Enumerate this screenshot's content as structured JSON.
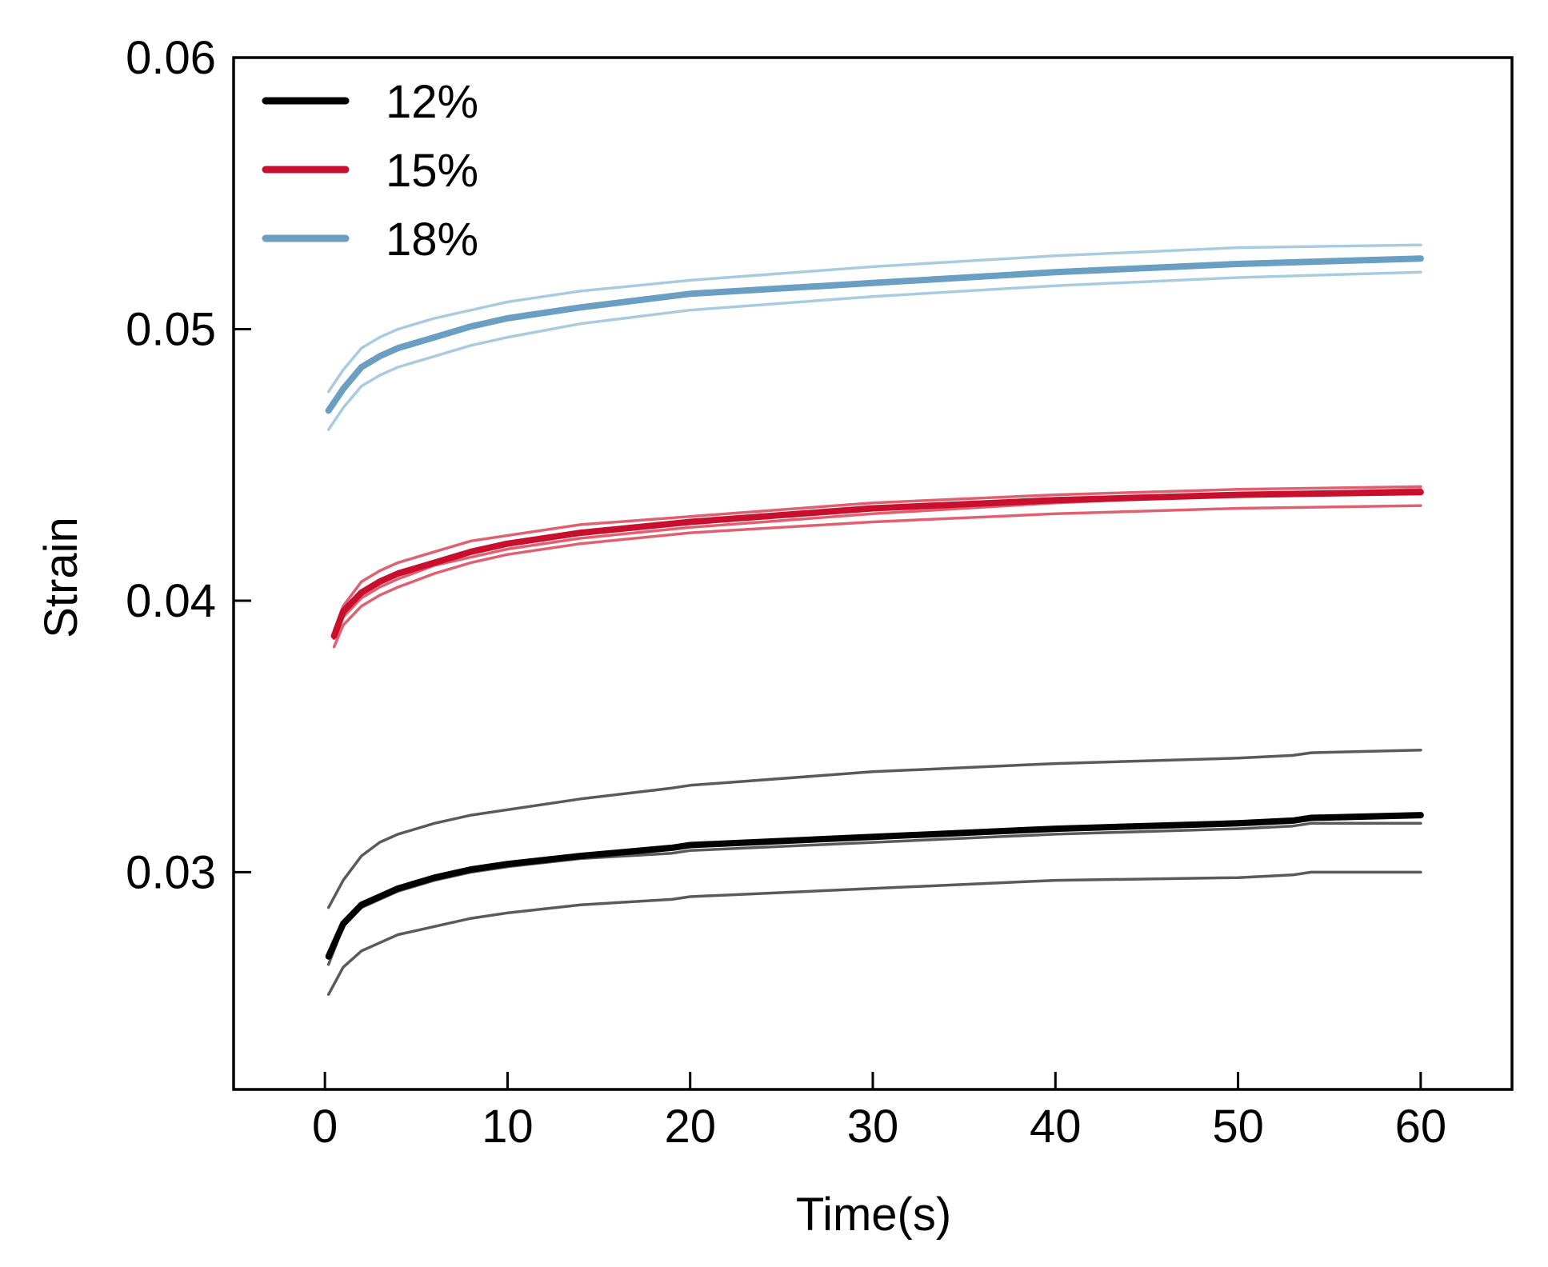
{
  "chart_data": {
    "type": "line",
    "title": "",
    "xlabel": "Time(s)",
    "ylabel": "Strain",
    "xlim": [
      -5,
      65
    ],
    "ylim": [
      0.022,
      0.06
    ],
    "xticks": [
      0,
      10,
      20,
      30,
      40,
      50,
      60
    ],
    "xtick_labels": [
      "0",
      "10",
      "20",
      "30",
      "40",
      "50",
      "60"
    ],
    "yticks": [
      0.03,
      0.04,
      0.05,
      0.06
    ],
    "ytick_labels": [
      "0.03",
      "0.04",
      "0.05",
      "0.06"
    ],
    "grid": false,
    "legend": {
      "position": "top-left",
      "entries": [
        "12%",
        "15%",
        "18%"
      ]
    },
    "series": [
      {
        "name": "12%",
        "color": "#000000",
        "band_color": "#5a5a5a",
        "x": [
          0.2,
          1,
          2,
          3,
          4,
          6,
          8,
          10,
          14,
          19,
          20,
          30,
          40,
          50,
          53,
          54,
          60
        ],
        "mean": [
          0.0269,
          0.0281,
          0.0288,
          0.0291,
          0.0294,
          0.0298,
          0.0301,
          0.0303,
          0.0306,
          0.0309,
          0.031,
          0.0313,
          0.0316,
          0.0318,
          0.0319,
          0.032,
          0.0321
        ],
        "upper": [
          0.0287,
          0.0297,
          0.0306,
          0.0311,
          0.0314,
          0.0318,
          0.0321,
          0.0323,
          0.0327,
          0.0331,
          0.0332,
          0.0337,
          0.034,
          0.0342,
          0.0343,
          0.0344,
          0.0345
        ],
        "lower": [
          0.0255,
          0.0265,
          0.0271,
          0.0274,
          0.0277,
          0.028,
          0.0283,
          0.0285,
          0.0288,
          0.029,
          0.0291,
          0.0294,
          0.0297,
          0.0298,
          0.0299,
          0.03,
          0.03
        ],
        "extra": [
          0.0266,
          0.028,
          0.0287,
          0.029,
          0.0293,
          0.0297,
          0.03,
          0.0302,
          0.0305,
          0.0307,
          0.0308,
          0.0311,
          0.0314,
          0.0316,
          0.0317,
          0.0318,
          0.0318
        ]
      },
      {
        "name": "15%",
        "color": "#c8102e",
        "band_color": "#e06070",
        "x": [
          0.5,
          1,
          2,
          3,
          4,
          6,
          8,
          10,
          14,
          20,
          30,
          40,
          50,
          60
        ],
        "mean": [
          0.0387,
          0.0396,
          0.0403,
          0.0407,
          0.041,
          0.0414,
          0.0418,
          0.0421,
          0.0425,
          0.0429,
          0.0434,
          0.0437,
          0.0439,
          0.044
        ],
        "upper": [
          0.0389,
          0.0398,
          0.0407,
          0.0411,
          0.0414,
          0.0418,
          0.0422,
          0.0424,
          0.0428,
          0.0431,
          0.0436,
          0.0439,
          0.0441,
          0.0442
        ],
        "lower": [
          0.0383,
          0.0391,
          0.0398,
          0.0402,
          0.0405,
          0.041,
          0.0414,
          0.0417,
          0.0421,
          0.0425,
          0.0429,
          0.0432,
          0.0434,
          0.0435
        ],
        "extra": [
          0.0386,
          0.0394,
          0.0401,
          0.0405,
          0.0408,
          0.0413,
          0.0416,
          0.0419,
          0.0423,
          0.0427,
          0.0432,
          0.0436,
          0.0439,
          0.0441
        ]
      },
      {
        "name": "18%",
        "color": "#6a9ec2",
        "band_color": "#a9cbe0",
        "x": [
          0.2,
          1,
          2,
          3,
          4,
          6,
          8,
          10,
          14,
          20,
          30,
          40,
          50,
          60
        ],
        "mean": [
          0.047,
          0.0478,
          0.0486,
          0.049,
          0.0493,
          0.0497,
          0.0501,
          0.0504,
          0.0508,
          0.0513,
          0.0517,
          0.0521,
          0.0524,
          0.0526
        ],
        "upper": [
          0.0477,
          0.0485,
          0.0493,
          0.0497,
          0.05,
          0.0504,
          0.0507,
          0.051,
          0.0514,
          0.0518,
          0.0523,
          0.0527,
          0.053,
          0.0531
        ],
        "lower": [
          0.0463,
          0.0471,
          0.0479,
          0.0483,
          0.0486,
          0.049,
          0.0494,
          0.0497,
          0.0502,
          0.0507,
          0.0512,
          0.0516,
          0.0519,
          0.0521
        ]
      }
    ]
  }
}
